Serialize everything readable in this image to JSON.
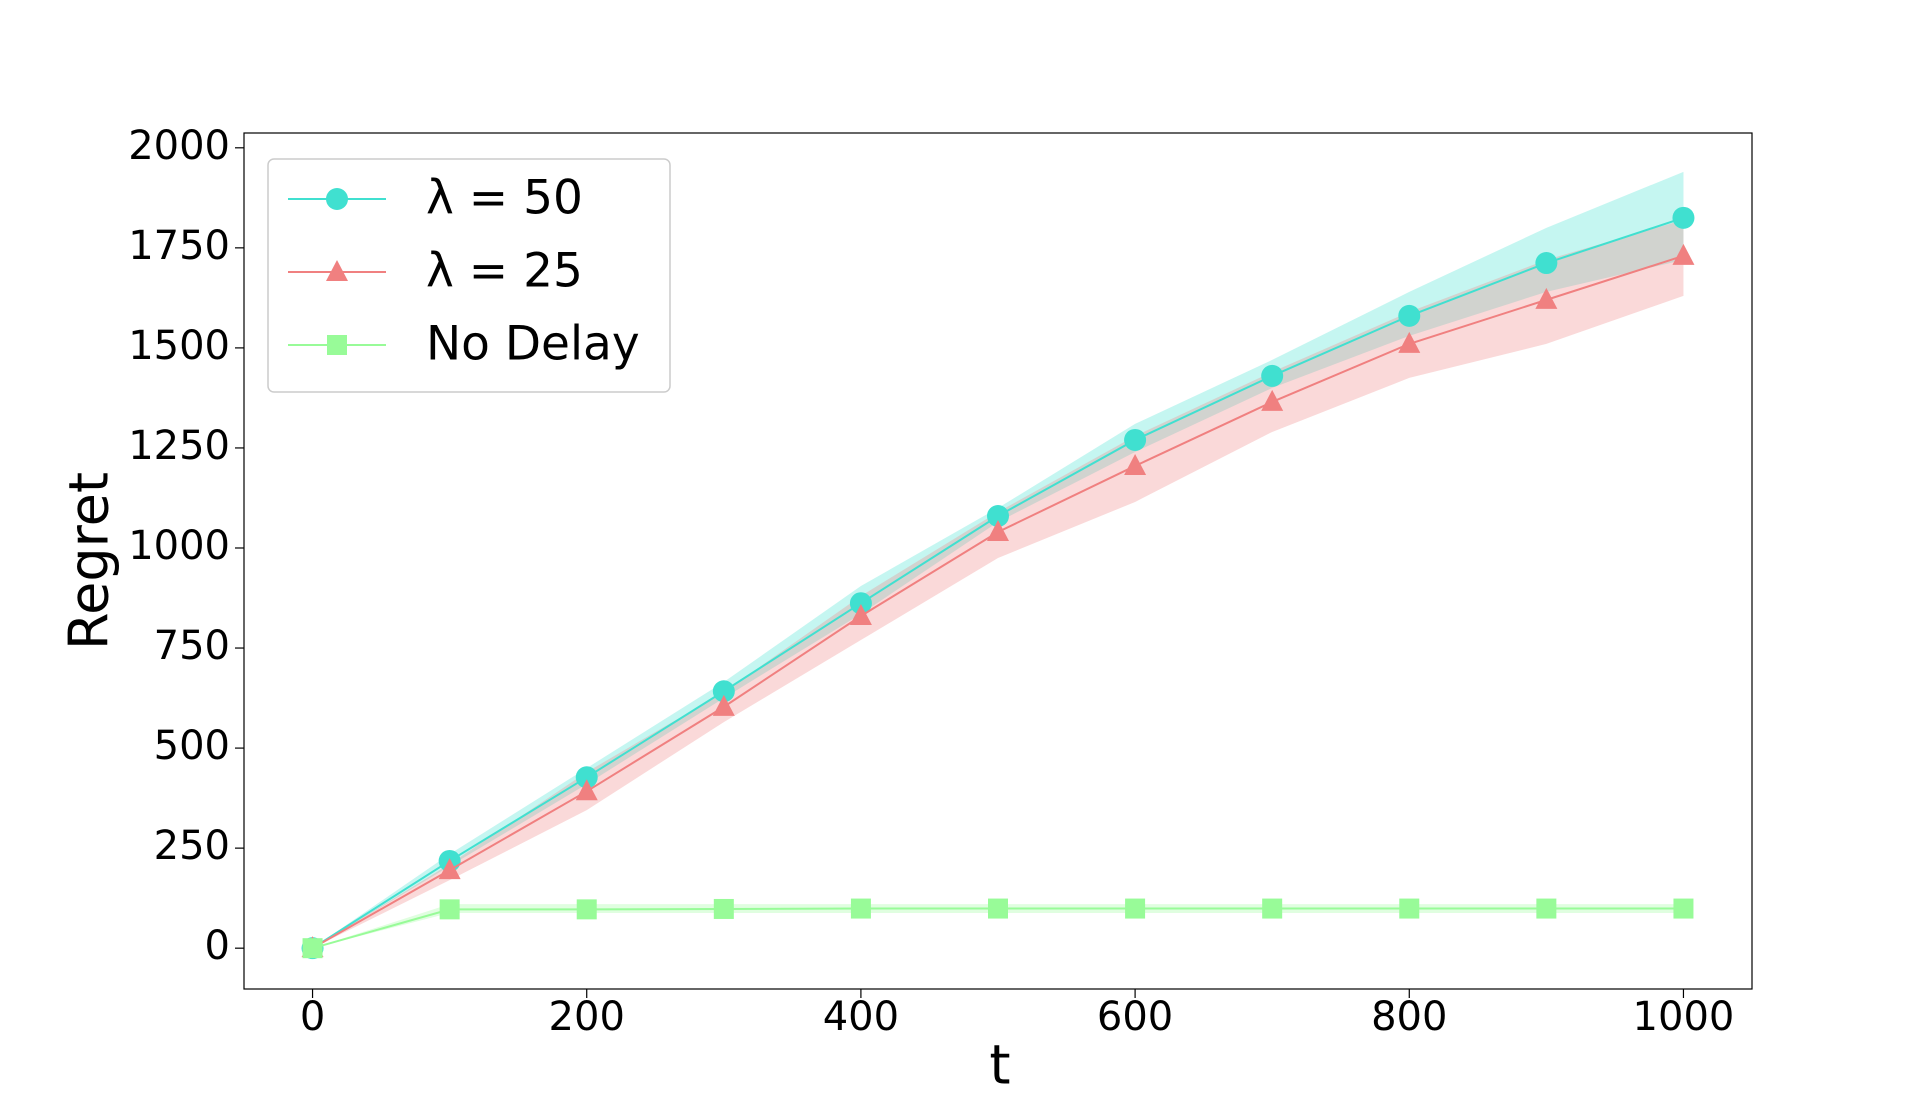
{
  "chart_data": {
    "type": "line",
    "xlabel": "t",
    "ylabel": "Regret",
    "x": [
      0,
      100,
      200,
      300,
      400,
      500,
      600,
      700,
      800,
      900,
      1000
    ],
    "series": [
      {
        "name": "λ = 50",
        "color": "#40e0d0",
        "marker": "circle",
        "values": [
          0,
          218,
          427,
          642,
          862,
          1080,
          1270,
          1430,
          1580,
          1712,
          1825
        ],
        "lower": [
          0,
          205,
          410,
          625,
          835,
          1065,
          1240,
          1400,
          1530,
          1640,
          1720
        ],
        "upper": [
          0,
          235,
          450,
          665,
          905,
          1100,
          1310,
          1470,
          1640,
          1800,
          1940
        ]
      },
      {
        "name": "λ = 25",
        "color": "#f08080",
        "marker": "triangle",
        "values": [
          0,
          195,
          392,
          603,
          830,
          1040,
          1205,
          1365,
          1510,
          1620,
          1730
        ],
        "lower": [
          0,
          170,
          345,
          565,
          770,
          975,
          1115,
          1290,
          1425,
          1510,
          1630
        ],
        "upper": [
          0,
          210,
          440,
          640,
          880,
          1090,
          1280,
          1440,
          1590,
          1720,
          1820
        ]
      },
      {
        "name": "No Delay",
        "color": "#98fb98",
        "marker": "square",
        "values": [
          0,
          97,
          97,
          98,
          99,
          99,
          99,
          99,
          99,
          99,
          99
        ],
        "lower": [
          0,
          88,
          88,
          88,
          88,
          88,
          88,
          88,
          88,
          88,
          88
        ],
        "upper": [
          0,
          110,
          110,
          110,
          110,
          110,
          110,
          110,
          110,
          110,
          110
        ]
      }
    ],
    "xlim": [
      -50,
      1050
    ],
    "ylim": [
      -102,
      2037
    ],
    "xticks": [
      0,
      200,
      400,
      600,
      800,
      1000
    ],
    "yticks": [
      0,
      250,
      500,
      750,
      1000,
      1250,
      1500,
      1750,
      2000
    ],
    "grid": false,
    "legend": "upper left"
  }
}
